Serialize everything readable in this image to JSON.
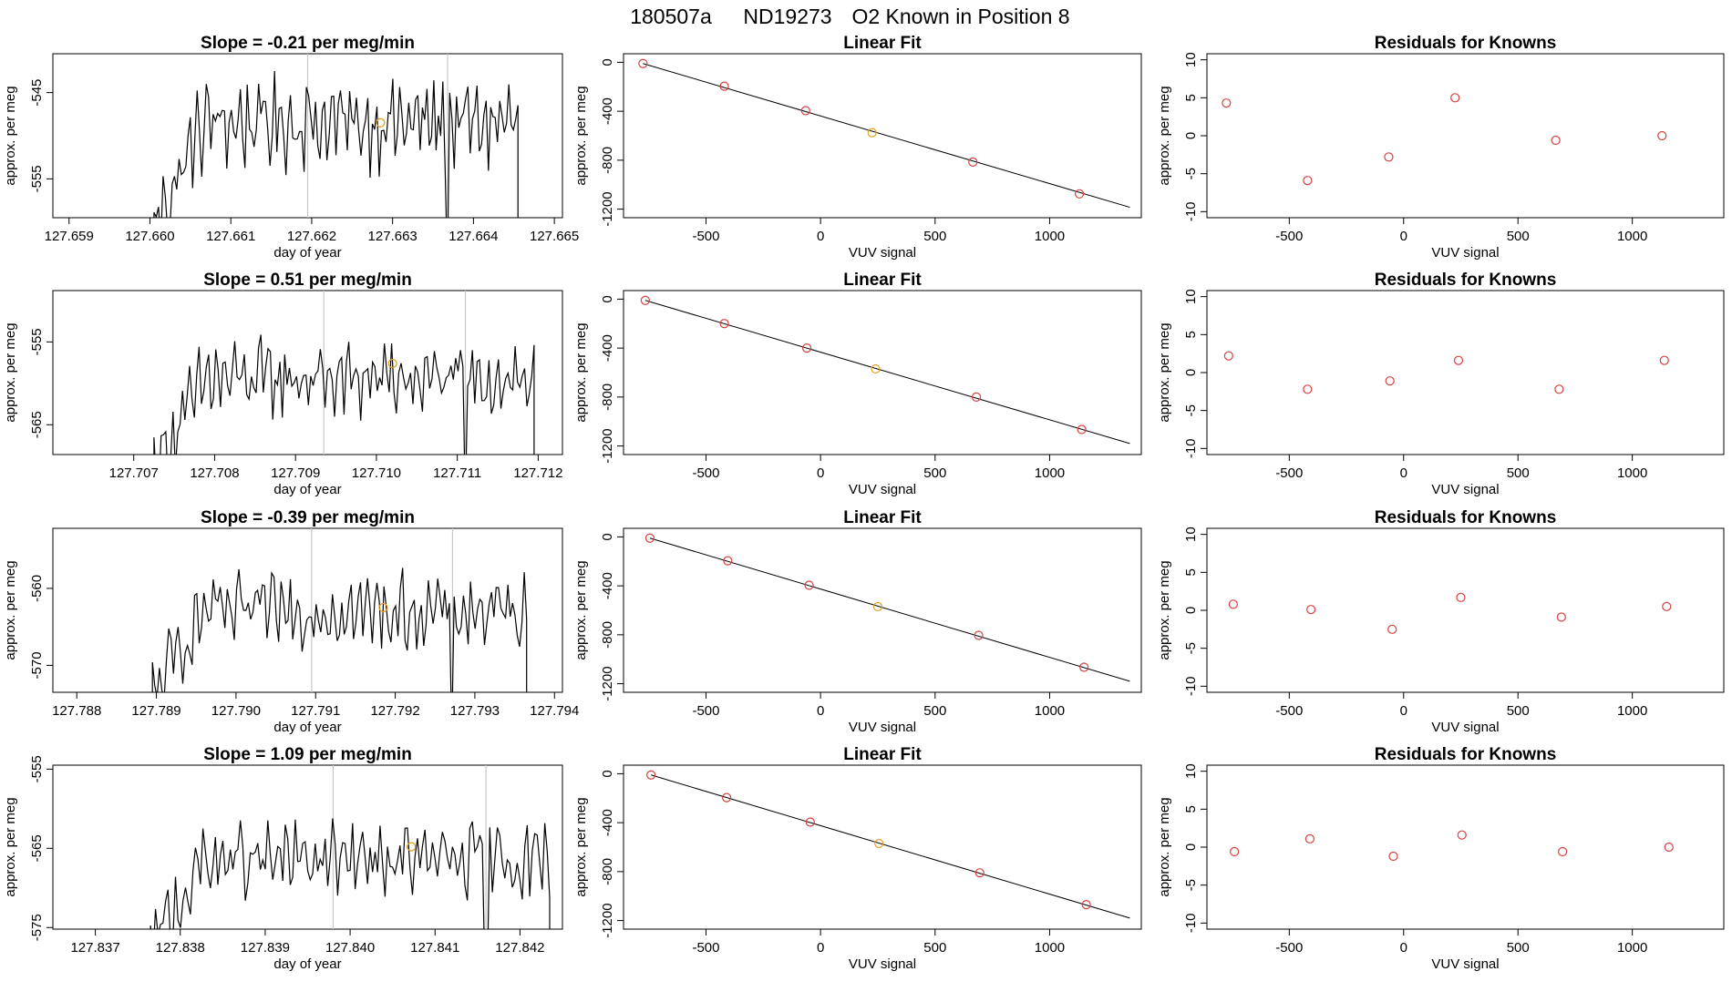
{
  "figure": {
    "title_run": "180507a",
    "title_tank": "ND19273",
    "title_desc": "O2 Known in Position  8"
  },
  "chart_data": [
    {
      "row": 1,
      "time_series": {
        "type": "line",
        "title": "Slope =  -0.21  per meg/min",
        "xlabel": "day of year",
        "ylabel": "approx. per meg",
        "xlim": [
          127.6588,
          127.6651
        ],
        "ylim": [
          -559.5,
          -540.5
        ],
        "xticks": [
          127.659,
          127.66,
          127.661,
          127.662,
          127.663,
          127.664,
          127.665
        ],
        "xtick_labels": [
          "127.659",
          "127.660",
          "127.661",
          "127.662",
          "127.663",
          "127.664",
          "127.665"
        ],
        "yticks": [
          -545,
          -555
        ],
        "ytick_labels": [
          "-545",
          "-555"
        ],
        "trace_start": 127.66005,
        "trace_end": 127.66455,
        "trace_base": -548.5,
        "trace_amplitude": 5,
        "vlines": [
          127.66195,
          127.66368
        ],
        "dropouts": [
          127.66368
        ],
        "marker": {
          "x": 127.66285,
          "y": -548.5
        }
      },
      "linear_fit": {
        "type": "scatter",
        "title": "Linear Fit",
        "xlabel": "VUV signal",
        "ylabel": "approx. per meg",
        "xlim": [
          -860,
          1400
        ],
        "ylim": [
          -1270,
          70
        ],
        "xticks": [
          -500,
          0,
          500,
          1000
        ],
        "xtick_labels": [
          "-500",
          "0",
          "500",
          "1000"
        ],
        "yticks": [
          0,
          -400,
          -800,
          -1200
        ],
        "ytick_labels": [
          "0",
          "-400",
          "-800",
          "-1200"
        ],
        "points": [
          {
            "x": -775,
            "y": -10
          },
          {
            "x": -420,
            "y": -195
          },
          {
            "x": -65,
            "y": -395
          },
          {
            "x": 225,
            "y": -575
          },
          {
            "x": 665,
            "y": -815
          },
          {
            "x": 1130,
            "y": -1075
          }
        ],
        "highlight_index": 3,
        "fit_line": {
          "x": [
            -775,
            1350
          ],
          "y": [
            -10,
            -1185
          ]
        }
      },
      "residuals": {
        "type": "scatter",
        "title": "Residuals for Knowns",
        "xlabel": "VUV signal",
        "ylabel": "approx. per meg",
        "xlim": [
          -860,
          1400
        ],
        "ylim": [
          -10.8,
          10.8
        ],
        "xticks": [
          -500,
          0,
          500,
          1000
        ],
        "xtick_labels": [
          "-500",
          "0",
          "500",
          "1000"
        ],
        "yticks": [
          10,
          5,
          0,
          -5,
          -10
        ],
        "ytick_labels": [
          "10",
          "5",
          "0",
          "-5",
          "-10"
        ],
        "points": [
          {
            "x": -775,
            "y": 4.3
          },
          {
            "x": -420,
            "y": -5.9
          },
          {
            "x": -65,
            "y": -2.8
          },
          {
            "x": 225,
            "y": 5.0
          },
          {
            "x": 665,
            "y": -0.6
          },
          {
            "x": 1130,
            "y": 0.0
          }
        ]
      }
    },
    {
      "row": 2,
      "time_series": {
        "type": "line",
        "title": "Slope =  0.51  per meg/min",
        "xlabel": "day of year",
        "ylabel": "approx. per meg",
        "xlim": [
          127.706,
          127.7123
        ],
        "ylim": [
          -568.6,
          -548.8
        ],
        "xticks": [
          127.707,
          127.708,
          127.709,
          127.71,
          127.711,
          127.712
        ],
        "xtick_labels": [
          "127.707",
          "127.708",
          "127.709",
          "127.710",
          "127.711",
          "127.712"
        ],
        "yticks": [
          -555,
          -565
        ],
        "ytick_labels": [
          "-555",
          "-565"
        ],
        "trace_start": 127.70725,
        "trace_end": 127.71195,
        "trace_base": -559.5,
        "trace_amplitude": 4.5,
        "vlines": [
          127.70935,
          127.7111
        ],
        "dropouts": [
          127.7111
        ],
        "marker": {
          "x": 127.7102,
          "y": -557.6
        }
      },
      "linear_fit": {
        "type": "scatter",
        "title": "Linear Fit",
        "xlabel": "VUV signal",
        "ylabel": "approx. per meg",
        "xlim": [
          -860,
          1400
        ],
        "ylim": [
          -1270,
          70
        ],
        "xticks": [
          -500,
          0,
          500,
          1000
        ],
        "xtick_labels": [
          "-500",
          "0",
          "500",
          "1000"
        ],
        "yticks": [
          0,
          -400,
          -800,
          -1200
        ],
        "ytick_labels": [
          "0",
          "-400",
          "-800",
          "-1200"
        ],
        "points": [
          {
            "x": -765,
            "y": -10
          },
          {
            "x": -420,
            "y": -200
          },
          {
            "x": -60,
            "y": -400
          },
          {
            "x": 240,
            "y": -570
          },
          {
            "x": 680,
            "y": -800
          },
          {
            "x": 1140,
            "y": -1065
          }
        ],
        "highlight_index": 3,
        "fit_line": {
          "x": [
            -765,
            1350
          ],
          "y": [
            -10,
            -1180
          ]
        }
      },
      "residuals": {
        "type": "scatter",
        "title": "Residuals for Knowns",
        "xlabel": "VUV signal",
        "ylabel": "approx. per meg",
        "xlim": [
          -860,
          1400
        ],
        "ylim": [
          -10.8,
          10.8
        ],
        "xticks": [
          -500,
          0,
          500,
          1000
        ],
        "xtick_labels": [
          "-500",
          "0",
          "500",
          "1000"
        ],
        "yticks": [
          10,
          5,
          0,
          -5,
          -10
        ],
        "ytick_labels": [
          "10",
          "5",
          "0",
          "-5",
          "-10"
        ],
        "points": [
          {
            "x": -765,
            "y": 2.2
          },
          {
            "x": -420,
            "y": -2.2
          },
          {
            "x": -60,
            "y": -1.1
          },
          {
            "x": 240,
            "y": 1.6
          },
          {
            "x": 680,
            "y": -2.2
          },
          {
            "x": 1140,
            "y": 1.6
          }
        ]
      }
    },
    {
      "row": 3,
      "time_series": {
        "type": "line",
        "title": "Slope =  -0.39  per meg/min",
        "xlabel": "day of year",
        "ylabel": "approx. per meg",
        "xlim": [
          127.7877,
          127.7941
        ],
        "ylim": [
          -573.5,
          -552.2
        ],
        "xticks": [
          127.788,
          127.789,
          127.79,
          127.791,
          127.792,
          127.793,
          127.794
        ],
        "xtick_labels": [
          "127.788",
          "127.789",
          "127.790",
          "127.791",
          "127.792",
          "127.793",
          "127.794"
        ],
        "yticks": [
          -560,
          -570
        ],
        "ytick_labels": [
          "-560",
          "-570"
        ],
        "trace_start": 127.78895,
        "trace_end": 127.79365,
        "trace_base": -563,
        "trace_amplitude": 4.5,
        "vlines": [
          127.79095,
          127.79272
        ],
        "dropouts": [
          127.79272
        ],
        "marker": {
          "x": 127.79185,
          "y": -562.5
        }
      },
      "linear_fit": {
        "type": "scatter",
        "title": "Linear Fit",
        "xlabel": "VUV signal",
        "ylabel": "approx. per meg",
        "xlim": [
          -860,
          1400
        ],
        "ylim": [
          -1270,
          70
        ],
        "xticks": [
          -500,
          0,
          500,
          1000
        ],
        "xtick_labels": [
          "-500",
          "0",
          "500",
          "1000"
        ],
        "yticks": [
          0,
          -400,
          -800,
          -1200
        ],
        "ytick_labels": [
          "0",
          "-400",
          "-800",
          "-1200"
        ],
        "points": [
          {
            "x": -745,
            "y": -10
          },
          {
            "x": -405,
            "y": -195
          },
          {
            "x": -50,
            "y": -395
          },
          {
            "x": 250,
            "y": -570
          },
          {
            "x": 690,
            "y": -805
          },
          {
            "x": 1150,
            "y": -1065
          }
        ],
        "highlight_index": 3,
        "fit_line": {
          "x": [
            -745,
            1350
          ],
          "y": [
            -10,
            -1180
          ]
        }
      },
      "residuals": {
        "type": "scatter",
        "title": "Residuals for Knowns",
        "xlabel": "VUV signal",
        "ylabel": "approx. per meg",
        "xlim": [
          -860,
          1400
        ],
        "ylim": [
          -10.8,
          10.8
        ],
        "xticks": [
          -500,
          0,
          500,
          1000
        ],
        "xtick_labels": [
          "-500",
          "0",
          "500",
          "1000"
        ],
        "yticks": [
          10,
          5,
          0,
          -5,
          -10
        ],
        "ytick_labels": [
          "10",
          "5",
          "0",
          "-5",
          "-10"
        ],
        "points": [
          {
            "x": -745,
            "y": 0.8
          },
          {
            "x": -405,
            "y": 0.1
          },
          {
            "x": -50,
            "y": -2.5
          },
          {
            "x": 250,
            "y": 1.7
          },
          {
            "x": 690,
            "y": -0.9
          },
          {
            "x": 1150,
            "y": 0.5
          }
        ]
      }
    },
    {
      "row": 4,
      "time_series": {
        "type": "line",
        "title": "Slope =  1.09  per meg/min",
        "xlabel": "day of year",
        "ylabel": "approx. per meg",
        "xlim": [
          127.8365,
          127.8425
        ],
        "ylim": [
          -575.2,
          -554.5
        ],
        "xticks": [
          127.837,
          127.838,
          127.839,
          127.84,
          127.841,
          127.842
        ],
        "xtick_labels": [
          "127.837",
          "127.838",
          "127.839",
          "127.840",
          "127.841",
          "127.842"
        ],
        "yticks": [
          -555,
          -565,
          -575
        ],
        "ytick_labels": [
          "-555",
          "-565",
          "-575"
        ],
        "trace_start": 127.83765,
        "trace_end": 127.84235,
        "trace_base": -566.5,
        "trace_amplitude": 4.5,
        "vlines": [
          127.8398,
          127.8416
        ],
        "dropouts": [
          127.8416
        ],
        "marker": {
          "x": 127.84072,
          "y": -564.8
        }
      },
      "linear_fit": {
        "type": "scatter",
        "title": "Linear Fit",
        "xlabel": "VUV signal",
        "ylabel": "approx. per meg",
        "xlim": [
          -860,
          1400
        ],
        "ylim": [
          -1270,
          70
        ],
        "xticks": [
          -500,
          0,
          500,
          1000
        ],
        "xtick_labels": [
          "-500",
          "0",
          "500",
          "1000"
        ],
        "yticks": [
          0,
          -400,
          -800,
          -1200
        ],
        "ytick_labels": [
          "0",
          "-400",
          "-800",
          "-1200"
        ],
        "points": [
          {
            "x": -740,
            "y": -10
          },
          {
            "x": -410,
            "y": -195
          },
          {
            "x": -45,
            "y": -395
          },
          {
            "x": 255,
            "y": -570
          },
          {
            "x": 695,
            "y": -810
          },
          {
            "x": 1160,
            "y": -1070
          }
        ],
        "highlight_index": 3,
        "fit_line": {
          "x": [
            -740,
            1350
          ],
          "y": [
            -10,
            -1180
          ]
        }
      },
      "residuals": {
        "type": "scatter",
        "title": "Residuals for Knowns",
        "xlabel": "VUV signal",
        "ylabel": "approx. per meg",
        "xlim": [
          -860,
          1400
        ],
        "ylim": [
          -10.8,
          10.8
        ],
        "xticks": [
          -500,
          0,
          500,
          1000
        ],
        "xtick_labels": [
          "-500",
          "0",
          "500",
          "1000"
        ],
        "yticks": [
          10,
          5,
          0,
          -5,
          -10
        ],
        "ytick_labels": [
          "10",
          "5",
          "0",
          "-5",
          "-10"
        ],
        "points": [
          {
            "x": -740,
            "y": -0.6
          },
          {
            "x": -410,
            "y": 1.1
          },
          {
            "x": -45,
            "y": -1.2
          },
          {
            "x": 255,
            "y": 1.6
          },
          {
            "x": 695,
            "y": -0.6
          },
          {
            "x": 1160,
            "y": 0.0
          }
        ]
      }
    }
  ],
  "colors": {
    "trace": "#000000",
    "frame": "#000000",
    "vline": "#c8c8c8",
    "point": "#d84040",
    "highlight": "#e8a020",
    "fit_line": "#000000",
    "background": "#ffffff"
  }
}
